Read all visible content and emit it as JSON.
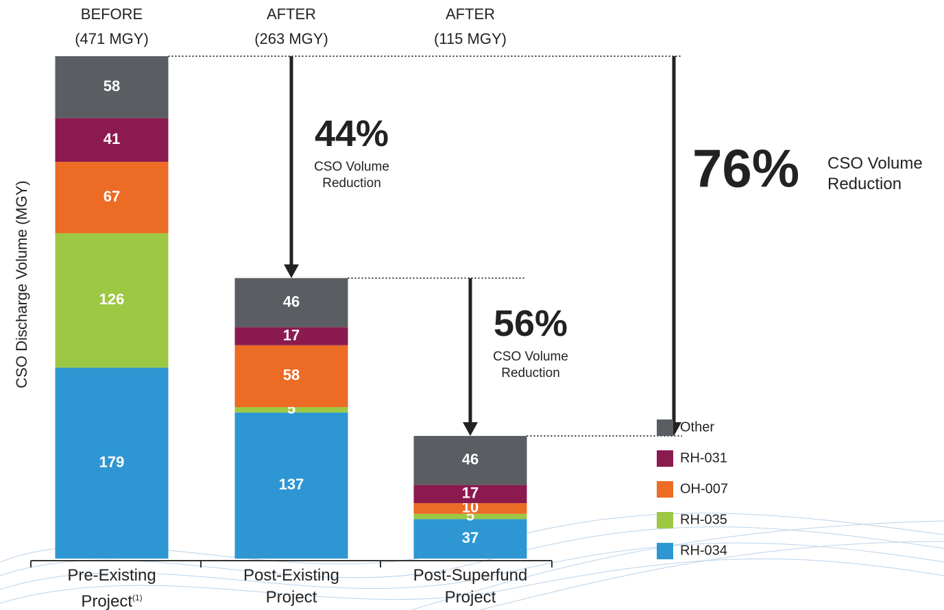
{
  "chart_data": {
    "type": "stacked_bar",
    "y_label": "CSO Discharge Volume (MGY)",
    "categories": [
      "Pre-Existing Project",
      "Post-Existing Project",
      "Post-Superfund Project"
    ],
    "category_footnote": "(1)",
    "headers": [
      {
        "label": "BEFORE",
        "total": "(471 MGY)"
      },
      {
        "label": "AFTER",
        "total": "(263 MGY)"
      },
      {
        "label": "AFTER",
        "total": "(115 MGY)"
      }
    ],
    "series": [
      {
        "name": "RH-034",
        "color": "#2e97d3",
        "values": [
          179,
          137,
          37
        ]
      },
      {
        "name": "RH-035",
        "color": "#9dc843",
        "values": [
          126,
          5,
          5
        ]
      },
      {
        "name": "OH-007",
        "color": "#ec6b25",
        "values": [
          67,
          58,
          10
        ]
      },
      {
        "name": "RH-031",
        "color": "#8b1a4f",
        "values": [
          41,
          17,
          17
        ]
      },
      {
        "name": "Other",
        "color": "#5a5e63",
        "values": [
          58,
          46,
          46
        ]
      }
    ],
    "annotations": [
      {
        "from": 0,
        "to": 1,
        "value": "44%",
        "text": "CSO Volume Reduction"
      },
      {
        "from": 1,
        "to": 2,
        "value": "56%",
        "text": "CSO Volume Reduction"
      },
      {
        "from": 0,
        "to": 2,
        "value": "76%",
        "text": "CSO Volume Reduction"
      }
    ],
    "legend": "bottom-right"
  }
}
